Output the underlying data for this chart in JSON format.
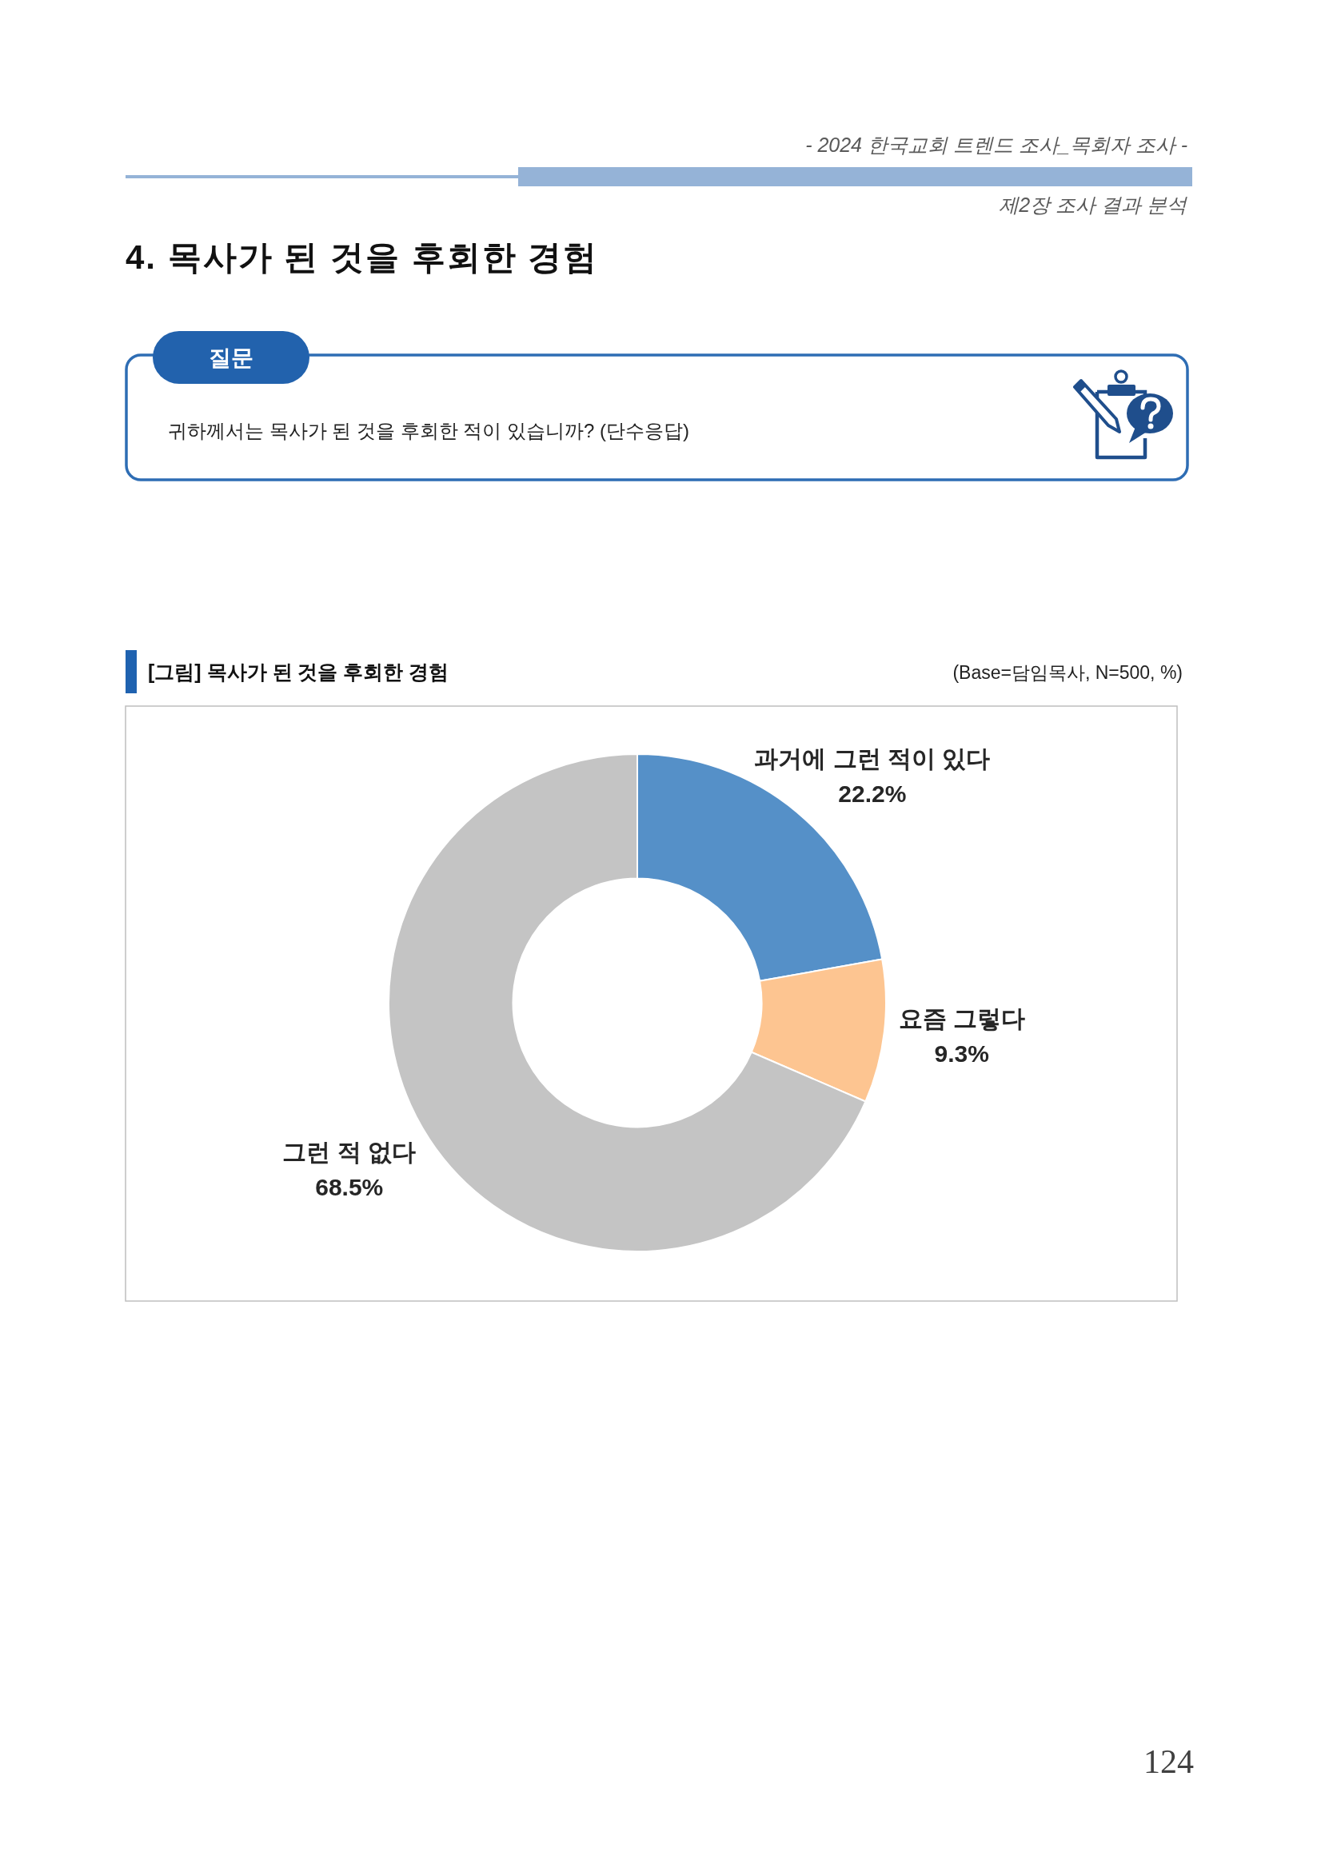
{
  "chart_data": {
    "type": "donut",
    "title": "[그림] 목사가 된 것을 후회한 경험",
    "categories": [
      "과거에 그런 적이 있다",
      "요즘 그렇다",
      "그런 적 없다"
    ],
    "values": [
      22.2,
      9.3,
      68.5
    ],
    "colors": [
      "#5590c8",
      "#fdc591",
      "#c4c4c4"
    ],
    "value_labels": [
      "22.2%",
      "9.3%",
      "68.5%"
    ],
    "annotations": [
      "- 2024 한국교회 트렌드 조사_목회자 조사 -",
      "제2장 조사 결과 분석",
      "4. 목사가 된 것을 후회한 경험",
      "질문",
      "귀하께서는 목사가 된 것을 후회한 적이 있습니까? (단수응답)",
      "(Base=담임목사, N=500, %)",
      "124"
    ]
  }
}
